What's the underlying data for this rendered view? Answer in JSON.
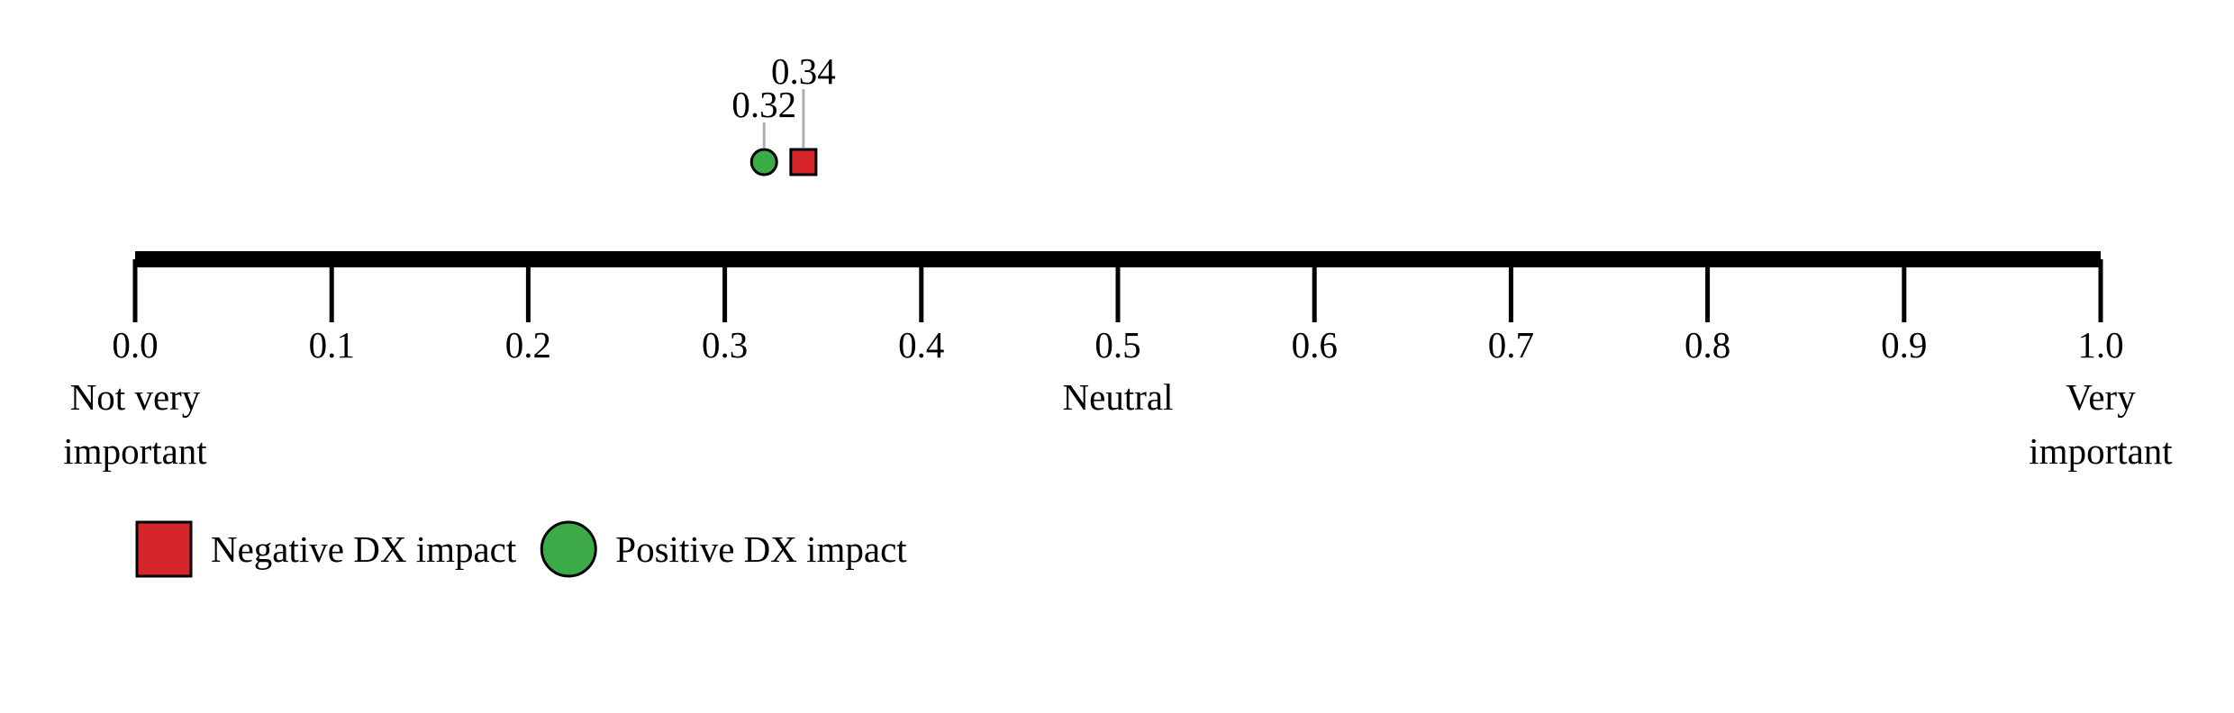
{
  "chart_data": {
    "type": "scatter",
    "xlim": [
      0.0,
      1.0
    ],
    "ticks": [
      "0.0",
      "0.1",
      "0.2",
      "0.3",
      "0.4",
      "0.5",
      "0.6",
      "0.7",
      "0.8",
      "0.9",
      "1.0"
    ],
    "anchors": {
      "low": [
        "Not very",
        "important"
      ],
      "mid": [
        "Neutral"
      ],
      "high": [
        "Very",
        "important"
      ]
    },
    "series": [
      {
        "name": "Positive DX impact",
        "marker": "circle",
        "color": "#3daa48",
        "values": [
          0.32
        ],
        "labels": [
          "0.32"
        ]
      },
      {
        "name": "Negative DX impact",
        "marker": "square",
        "color": "#d7262b",
        "values": [
          0.34
        ],
        "labels": [
          "0.34"
        ]
      }
    ],
    "legend": {
      "placement": "bottom-left",
      "entries": [
        {
          "name": "Negative DX impact",
          "marker": "square",
          "color": "#d7262b"
        },
        {
          "name": "Positive DX impact",
          "marker": "circle",
          "color": "#3daa48"
        }
      ]
    },
    "grid": false
  }
}
